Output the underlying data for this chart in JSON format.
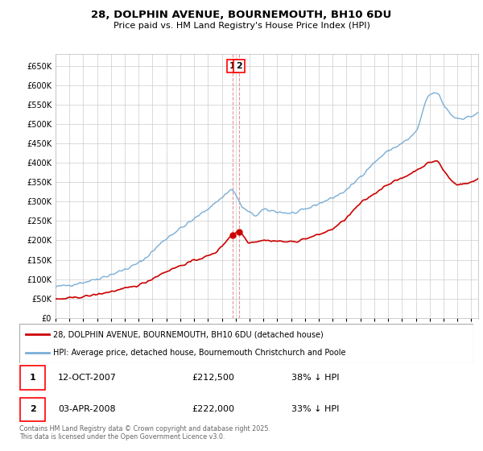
{
  "title_line1": "28, DOLPHIN AVENUE, BOURNEMOUTH, BH10 6DU",
  "title_line2": "Price paid vs. HM Land Registry's House Price Index (HPI)",
  "legend_red": "28, DOLPHIN AVENUE, BOURNEMOUTH, BH10 6DU (detached house)",
  "legend_blue": "HPI: Average price, detached house, Bournemouth Christchurch and Poole",
  "footer": "Contains HM Land Registry data © Crown copyright and database right 2025.\nThis data is licensed under the Open Government Licence v3.0.",
  "annotation1_date": "12-OCT-2007",
  "annotation1_price": "£212,500",
  "annotation1_hpi": "38% ↓ HPI",
  "annotation2_date": "03-APR-2008",
  "annotation2_price": "£222,000",
  "annotation2_hpi": "33% ↓ HPI",
  "ylim": [
    0,
    680000
  ],
  "yticks": [
    0,
    50000,
    100000,
    150000,
    200000,
    250000,
    300000,
    350000,
    400000,
    450000,
    500000,
    550000,
    600000,
    650000
  ],
  "background_color": "#ffffff",
  "grid_color": "#cccccc",
  "red_color": "#cc0000",
  "blue_color": "#7aaed6",
  "marker1_x": 2007.78,
  "marker1_y": 212500,
  "marker2_x": 2008.25,
  "marker2_y": 222000,
  "xlim_start": 1995.0,
  "xlim_end": 2025.5
}
